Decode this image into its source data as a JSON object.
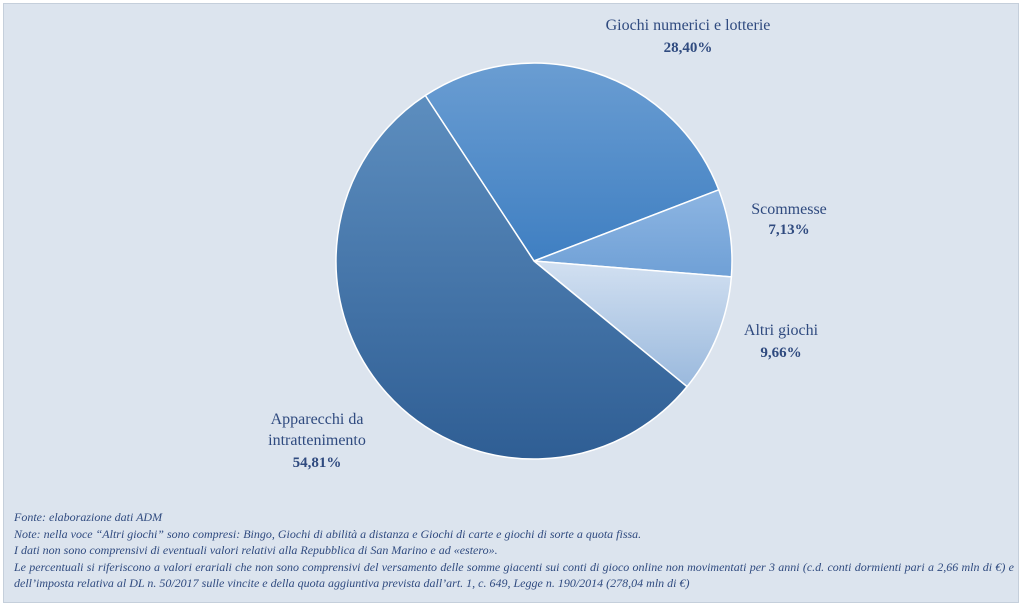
{
  "chart_data": {
    "type": "pie",
    "slices": [
      {
        "name": "Giochi numerici e lotterie",
        "value": 28.4,
        "label": "28,40%",
        "color": "#4a86c4"
      },
      {
        "name": "Scommesse",
        "value": 7.13,
        "label": "7,13%",
        "color": "#82acdc"
      },
      {
        "name": "Altri giochi",
        "value": 9.66,
        "label": "9,66%",
        "color": "#bcd0ea"
      },
      {
        "name": "Apparecchi da intrattenimento",
        "value": 54.81,
        "label": "54,81%",
        "color": "#3c6ea6"
      }
    ]
  },
  "labels": {
    "giochi": {
      "name": "Giochi numerici e lotterie",
      "pct": "28,40%"
    },
    "scommesse": {
      "name": "Scommesse",
      "pct": "7,13%"
    },
    "altri": {
      "name": "Altri giochi",
      "pct": "9,66%"
    },
    "apparecchi": {
      "name_line1": "Apparecchi da",
      "name_line2": "intrattenimento",
      "pct": "54,81%"
    }
  },
  "notes": {
    "fonte": "Fonte: elaborazione dati ADM",
    "note1": "Note: nella voce “Altri giochi” sono compresi: Bingo, Giochi di abilità a distanza e Giochi di carte e giochi di sorte a quota fissa.",
    "note2": " I dati non sono comprensivi di eventuali valori relativi alla Repubblica di San Marino e ad «estero».",
    "note3": "Le percentuali si riferiscono a valori erariali che non sono comprensivi del versamento delle somme giacenti sui conti di gioco online non movimentati per 3 anni (c.d. conti dormienti pari a 2,66 mln di €) e dell’imposta relativa al DL n. 50/2017 sulle vincite e della quota aggiuntiva prevista dall’art. 1, c. 649, Legge n. 190/2014 (278,04 mln di €)"
  }
}
